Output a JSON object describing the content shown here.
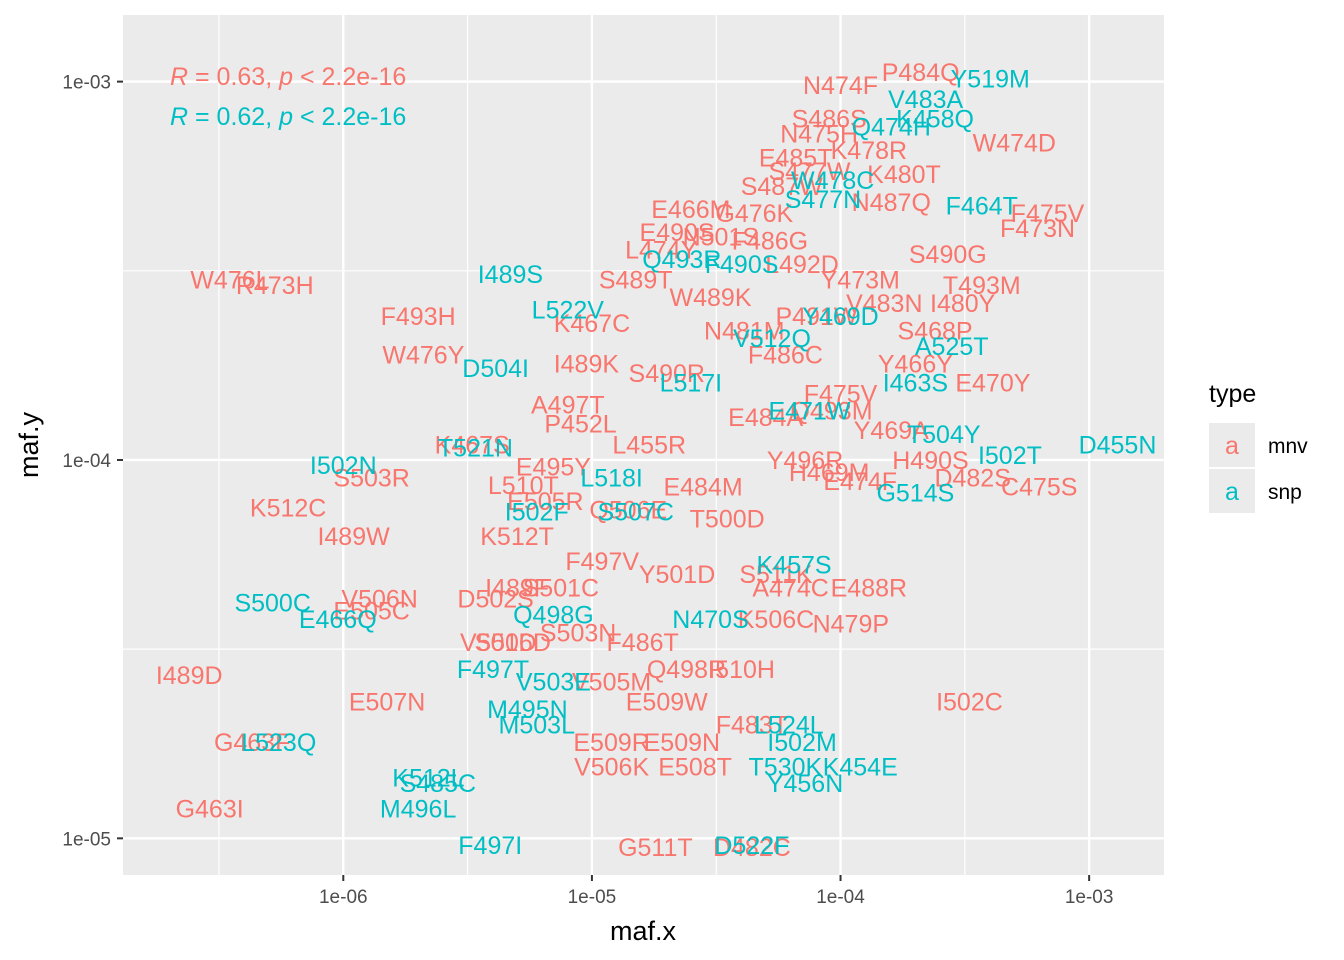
{
  "chart_data": {
    "type": "scatter",
    "title": "",
    "xlabel": "maf.x",
    "ylabel": "maf.y",
    "x_scale": "log10",
    "y_scale": "log10",
    "xlim": [
      1.3e-07,
      0.002
    ],
    "ylim": [
      8e-06,
      0.0015
    ],
    "x_ticks": [
      "1e-06",
      "1e-05",
      "1e-04",
      "1e-03"
    ],
    "y_ticks": [
      "1e-05",
      "1e-04",
      "1e-03"
    ],
    "grid": true,
    "legend": {
      "title": "type",
      "position": "right",
      "entries": [
        {
          "key_glyph": "a",
          "label": "mnv",
          "color": "#F8766D"
        },
        {
          "key_glyph": "a",
          "label": "snp",
          "color": "#00BFC4"
        }
      ]
    },
    "annotations": [
      {
        "r_label": "R",
        "text": " = 0.63, ",
        "p_label": "p",
        "text2": " < 2.2e-16",
        "color": "#F8766D"
      },
      {
        "r_label": "R",
        "text": " = 0.62, ",
        "p_label": "p",
        "text2": " < 2.2e-16",
        "color": "#00BFC4"
      }
    ],
    "series": [
      {
        "name": "mnv",
        "color": "#F8766D",
        "points": [
          {
            "label": "W476L",
            "x": 3.5e-07,
            "y": 0.0003
          },
          {
            "label": "R473H",
            "x": 5.3e-07,
            "y": 0.00029
          },
          {
            "label": "F493H",
            "x": 2e-06,
            "y": 0.00024
          },
          {
            "label": "W476Y",
            "x": 2.1e-06,
            "y": 0.00019
          },
          {
            "label": "K467S",
            "x": 3.3e-06,
            "y": 0.00011
          },
          {
            "label": "S503R",
            "x": 1.3e-06,
            "y": 9e-05
          },
          {
            "label": "K512C",
            "x": 6e-07,
            "y": 7.5e-05
          },
          {
            "label": "I489W",
            "x": 1.1e-06,
            "y": 6.3e-05
          },
          {
            "label": "E505C",
            "x": 1.3e-06,
            "y": 4e-05
          },
          {
            "label": "V506N",
            "x": 1.4e-06,
            "y": 4.3e-05
          },
          {
            "label": "I489D",
            "x": 2.4e-07,
            "y": 2.7e-05
          },
          {
            "label": "E507N",
            "x": 1.5e-06,
            "y": 2.3e-05
          },
          {
            "label": "G463F",
            "x": 4.3e-07,
            "y": 1.8e-05
          },
          {
            "label": "G463I",
            "x": 2.9e-07,
            "y": 1.2e-05
          },
          {
            "label": "G511T",
            "x": 1.8e-05,
            "y": 9.5e-06
          },
          {
            "label": "D482C",
            "x": 4.4e-05,
            "y": 9.5e-06
          },
          {
            "label": "I502C",
            "x": 0.00033,
            "y": 2.3e-05
          },
          {
            "label": "N479P",
            "x": 0.00011,
            "y": 3.7e-05
          },
          {
            "label": "E488R",
            "x": 0.00013,
            "y": 4.6e-05
          },
          {
            "label": "C475S",
            "x": 0.00063,
            "y": 8.5e-05
          },
          {
            "label": "D482S",
            "x": 0.00034,
            "y": 9e-05
          },
          {
            "label": "H490S",
            "x": 0.00023,
            "y": 0.0001
          },
          {
            "label": "Y469A",
            "x": 0.00016,
            "y": 0.00012
          },
          {
            "label": "E470Y",
            "x": 0.00041,
            "y": 0.00016
          },
          {
            "label": "T493M",
            "x": 0.00037,
            "y": 0.00029
          },
          {
            "label": "I480Y",
            "x": 0.00031,
            "y": 0.00026
          },
          {
            "label": "F473N",
            "x": 0.00062,
            "y": 0.00041
          },
          {
            "label": "F475V",
            "x": 0.00068,
            "y": 0.00045
          },
          {
            "label": "W474D",
            "x": 0.0005,
            "y": 0.00069
          },
          {
            "label": "P484Q",
            "x": 0.00021,
            "y": 0.00106
          },
          {
            "label": "N474F",
            "x": 0.0001,
            "y": 0.00098
          },
          {
            "label": "S486S",
            "x": 9e-05,
            "y": 0.0008
          },
          {
            "label": "N475H",
            "x": 8.2e-05,
            "y": 0.00073
          },
          {
            "label": "E485T",
            "x": 6.6e-05,
            "y": 0.00063
          },
          {
            "label": "S487W",
            "x": 5.8e-05,
            "y": 0.00053
          },
          {
            "label": "E466M",
            "x": 2.5e-05,
            "y": 0.00046
          },
          {
            "label": "E490S",
            "x": 2.2e-05,
            "y": 0.0004
          },
          {
            "label": "L474Y",
            "x": 1.9e-05,
            "y": 0.00036
          },
          {
            "label": "S489T",
            "x": 1.5e-05,
            "y": 0.0003
          },
          {
            "label": "K467C",
            "x": 1e-05,
            "y": 0.00023
          },
          {
            "label": "I489K",
            "x": 9.5e-06,
            "y": 0.00018
          },
          {
            "label": "A497T",
            "x": 8e-06,
            "y": 0.00014
          },
          {
            "label": "P452L",
            "x": 9e-06,
            "y": 0.000125
          },
          {
            "label": "E495Y",
            "x": 7e-06,
            "y": 9.6e-05
          },
          {
            "label": "L510T",
            "x": 5.3e-06,
            "y": 8.6e-05
          },
          {
            "label": "E505R",
            "x": 6.5e-06,
            "y": 7.8e-05
          },
          {
            "label": "K512T",
            "x": 5e-06,
            "y": 6.3e-05
          },
          {
            "label": "D502S",
            "x": 4.1e-06,
            "y": 4.3e-05
          },
          {
            "label": "I489F",
            "x": 5e-06,
            "y": 4.6e-05
          },
          {
            "label": "S501C",
            "x": 7.5e-06,
            "y": 4.6e-05
          },
          {
            "label": "V501D",
            "x": 4.2e-06,
            "y": 3.3e-05
          },
          {
            "label": "S506D",
            "x": 4.8e-06,
            "y": 3.3e-05
          },
          {
            "label": "S503N",
            "x": 8.8e-06,
            "y": 3.5e-05
          },
          {
            "label": "F486T",
            "x": 1.6e-05,
            "y": 3.3e-05
          },
          {
            "label": "Q498R",
            "x": 2.4e-05,
            "y": 2.8e-05
          },
          {
            "label": "I510H",
            "x": 4e-05,
            "y": 2.8e-05
          },
          {
            "label": "V505M",
            "x": 1.2e-05,
            "y": 2.6e-05
          },
          {
            "label": "E509W",
            "x": 2e-05,
            "y": 2.3e-05
          },
          {
            "label": "E509R",
            "x": 1.2e-05,
            "y": 1.8e-05
          },
          {
            "label": "E509N",
            "x": 2.3e-05,
            "y": 1.8e-05
          },
          {
            "label": "V506K",
            "x": 1.2e-05,
            "y": 1.55e-05
          },
          {
            "label": "E508T",
            "x": 2.6e-05,
            "y": 1.55e-05
          },
          {
            "label": "F483T",
            "x": 4.4e-05,
            "y": 2e-05
          },
          {
            "label": "K506C",
            "x": 5.5e-05,
            "y": 3.8e-05
          },
          {
            "label": "A474C",
            "x": 6.3e-05,
            "y": 4.6e-05
          },
          {
            "label": "S511K",
            "x": 5.5e-05,
            "y": 5e-05
          },
          {
            "label": "E474F",
            "x": 0.00012,
            "y": 8.8e-05
          },
          {
            "label": "H469M",
            "x": 9e-05,
            "y": 9.3e-05
          },
          {
            "label": "Y496R",
            "x": 7.2e-05,
            "y": 0.0001
          },
          {
            "label": "F475V",
            "x": 0.0001,
            "y": 0.00015
          },
          {
            "label": "Y466Y",
            "x": 0.0002,
            "y": 0.00018
          },
          {
            "label": "S468P",
            "x": 0.00024,
            "y": 0.00022
          },
          {
            "label": "N487Q",
            "x": 0.00016,
            "y": 0.00048
          },
          {
            "label": "S490G",
            "x": 0.00027,
            "y": 0.00035
          },
          {
            "label": "K480T",
            "x": 0.00018,
            "y": 0.00057
          },
          {
            "label": "F486G",
            "x": 5.2e-05,
            "y": 0.00038
          },
          {
            "label": "L492D",
            "x": 7e-05,
            "y": 0.00033
          },
          {
            "label": "W489K",
            "x": 3e-05,
            "y": 0.00027
          },
          {
            "label": "N481M",
            "x": 4.1e-05,
            "y": 0.00022
          },
          {
            "label": "S490R",
            "x": 2e-05,
            "y": 0.00017
          },
          {
            "label": "E484A",
            "x": 5e-05,
            "y": 0.00013
          },
          {
            "label": "T500D",
            "x": 3.5e-05,
            "y": 7e-05
          },
          {
            "label": "E484M",
            "x": 2.8e-05,
            "y": 8.5e-05
          },
          {
            "label": "Q506E",
            "x": 1.4e-05,
            "y": 7.4e-05
          },
          {
            "label": "F497V",
            "x": 1.1e-05,
            "y": 5.4e-05
          },
          {
            "label": "L455R",
            "x": 1.7e-05,
            "y": 0.00011
          },
          {
            "label": "Y501D",
            "x": 2.2e-05,
            "y": 5e-05
          },
          {
            "label": "P491W",
            "x": 8e-05,
            "y": 0.00024
          },
          {
            "label": "Y473M",
            "x": 0.00012,
            "y": 0.0003
          },
          {
            "label": "V483N",
            "x": 0.00015,
            "y": 0.00026
          },
          {
            "label": "G476K",
            "x": 4.5e-05,
            "y": 0.00045
          },
          {
            "label": "F486C",
            "x": 6e-05,
            "y": 0.00019
          },
          {
            "label": "Q493M",
            "x": 9.2e-05,
            "y": 0.000135
          },
          {
            "label": "N501S",
            "x": 3.3e-05,
            "y": 0.00039
          },
          {
            "label": "S477W",
            "x": 7.5e-05,
            "y": 0.00058
          },
          {
            "label": "K478R",
            "x": 0.00013,
            "y": 0.00066
          }
        ]
      },
      {
        "name": "snp",
        "color": "#00BFC4",
        "points": [
          {
            "label": "Y519M",
            "x": 0.0004,
            "y": 0.00102
          },
          {
            "label": "V483A",
            "x": 0.00022,
            "y": 0.0009
          },
          {
            "label": "K458Q",
            "x": 0.00024,
            "y": 0.0008
          },
          {
            "label": "W478C",
            "x": 9.3e-05,
            "y": 0.00055
          },
          {
            "label": "F464T",
            "x": 0.00037,
            "y": 0.00047
          },
          {
            "label": "I489S",
            "x": 4.7e-06,
            "y": 0.00031
          },
          {
            "label": "Q493R",
            "x": 2.3e-05,
            "y": 0.00034
          },
          {
            "label": "L522V",
            "x": 8e-06,
            "y": 0.00025
          },
          {
            "label": "D504I",
            "x": 4.1e-06,
            "y": 0.000175
          },
          {
            "label": "T521N",
            "x": 3.4e-06,
            "y": 0.000108
          },
          {
            "label": "I502N",
            "x": 1e-06,
            "y": 9.7e-05
          },
          {
            "label": "I502F",
            "x": 6e-06,
            "y": 7.3e-05
          },
          {
            "label": "L518I",
            "x": 1.2e-05,
            "y": 9e-05
          },
          {
            "label": "S500C",
            "x": 5.2e-07,
            "y": 4.2e-05
          },
          {
            "label": "E466Q",
            "x": 9.5e-07,
            "y": 3.8e-05
          },
          {
            "label": "Q498G",
            "x": 7e-06,
            "y": 3.9e-05
          },
          {
            "label": "F497T",
            "x": 4e-06,
            "y": 2.8e-05
          },
          {
            "label": "V503E",
            "x": 7e-06,
            "y": 2.6e-05
          },
          {
            "label": "M495N",
            "x": 5.5e-06,
            "y": 2.2e-05
          },
          {
            "label": "M503L",
            "x": 6e-06,
            "y": 2e-05
          },
          {
            "label": "L523Q",
            "x": 5.5e-07,
            "y": 1.8e-05
          },
          {
            "label": "K512L",
            "x": 2.2e-06,
            "y": 1.45e-05
          },
          {
            "label": "S485C",
            "x": 2.4e-06,
            "y": 1.4e-05
          },
          {
            "label": "M496L",
            "x": 2e-06,
            "y": 1.2e-05
          },
          {
            "label": "F497I",
            "x": 3.9e-06,
            "y": 9.6e-06
          },
          {
            "label": "D522F",
            "x": 4.4e-05,
            "y": 9.6e-06
          },
          {
            "label": "Y456N",
            "x": 7.2e-05,
            "y": 1.4e-05
          },
          {
            "label": "I502M",
            "x": 7e-05,
            "y": 1.8e-05
          },
          {
            "label": "T530K",
            "x": 6e-05,
            "y": 1.55e-05
          },
          {
            "label": "K454E",
            "x": 0.00012,
            "y": 1.55e-05
          },
          {
            "label": "L524L",
            "x": 6.2e-05,
            "y": 2e-05
          },
          {
            "label": "S507C",
            "x": 1.5e-05,
            "y": 7.3e-05
          },
          {
            "label": "N470S",
            "x": 3e-05,
            "y": 3.8e-05
          },
          {
            "label": "K457S",
            "x": 6.5e-05,
            "y": 5.3e-05
          },
          {
            "label": "G514S",
            "x": 0.0002,
            "y": 8.2e-05
          },
          {
            "label": "I502T",
            "x": 0.00048,
            "y": 0.000103
          },
          {
            "label": "D455N",
            "x": 0.0013,
            "y": 0.00011
          },
          {
            "label": "T504Y",
            "x": 0.00026,
            "y": 0.000117
          },
          {
            "label": "I463S",
            "x": 0.0002,
            "y": 0.00016
          },
          {
            "label": "A525T",
            "x": 0.00028,
            "y": 0.0002
          },
          {
            "label": "Y469D",
            "x": 0.0001,
            "y": 0.00024
          },
          {
            "label": "V512Q",
            "x": 5.3e-05,
            "y": 0.00021
          },
          {
            "label": "L517I",
            "x": 2.5e-05,
            "y": 0.00016
          },
          {
            "label": "F490S",
            "x": 4e-05,
            "y": 0.00033
          },
          {
            "label": "E471W",
            "x": 7.5e-05,
            "y": 0.000135
          },
          {
            "label": "S477N",
            "x": 8.5e-05,
            "y": 0.00049
          },
          {
            "label": "Q474H",
            "x": 0.00016,
            "y": 0.00076
          }
        ]
      }
    ]
  }
}
